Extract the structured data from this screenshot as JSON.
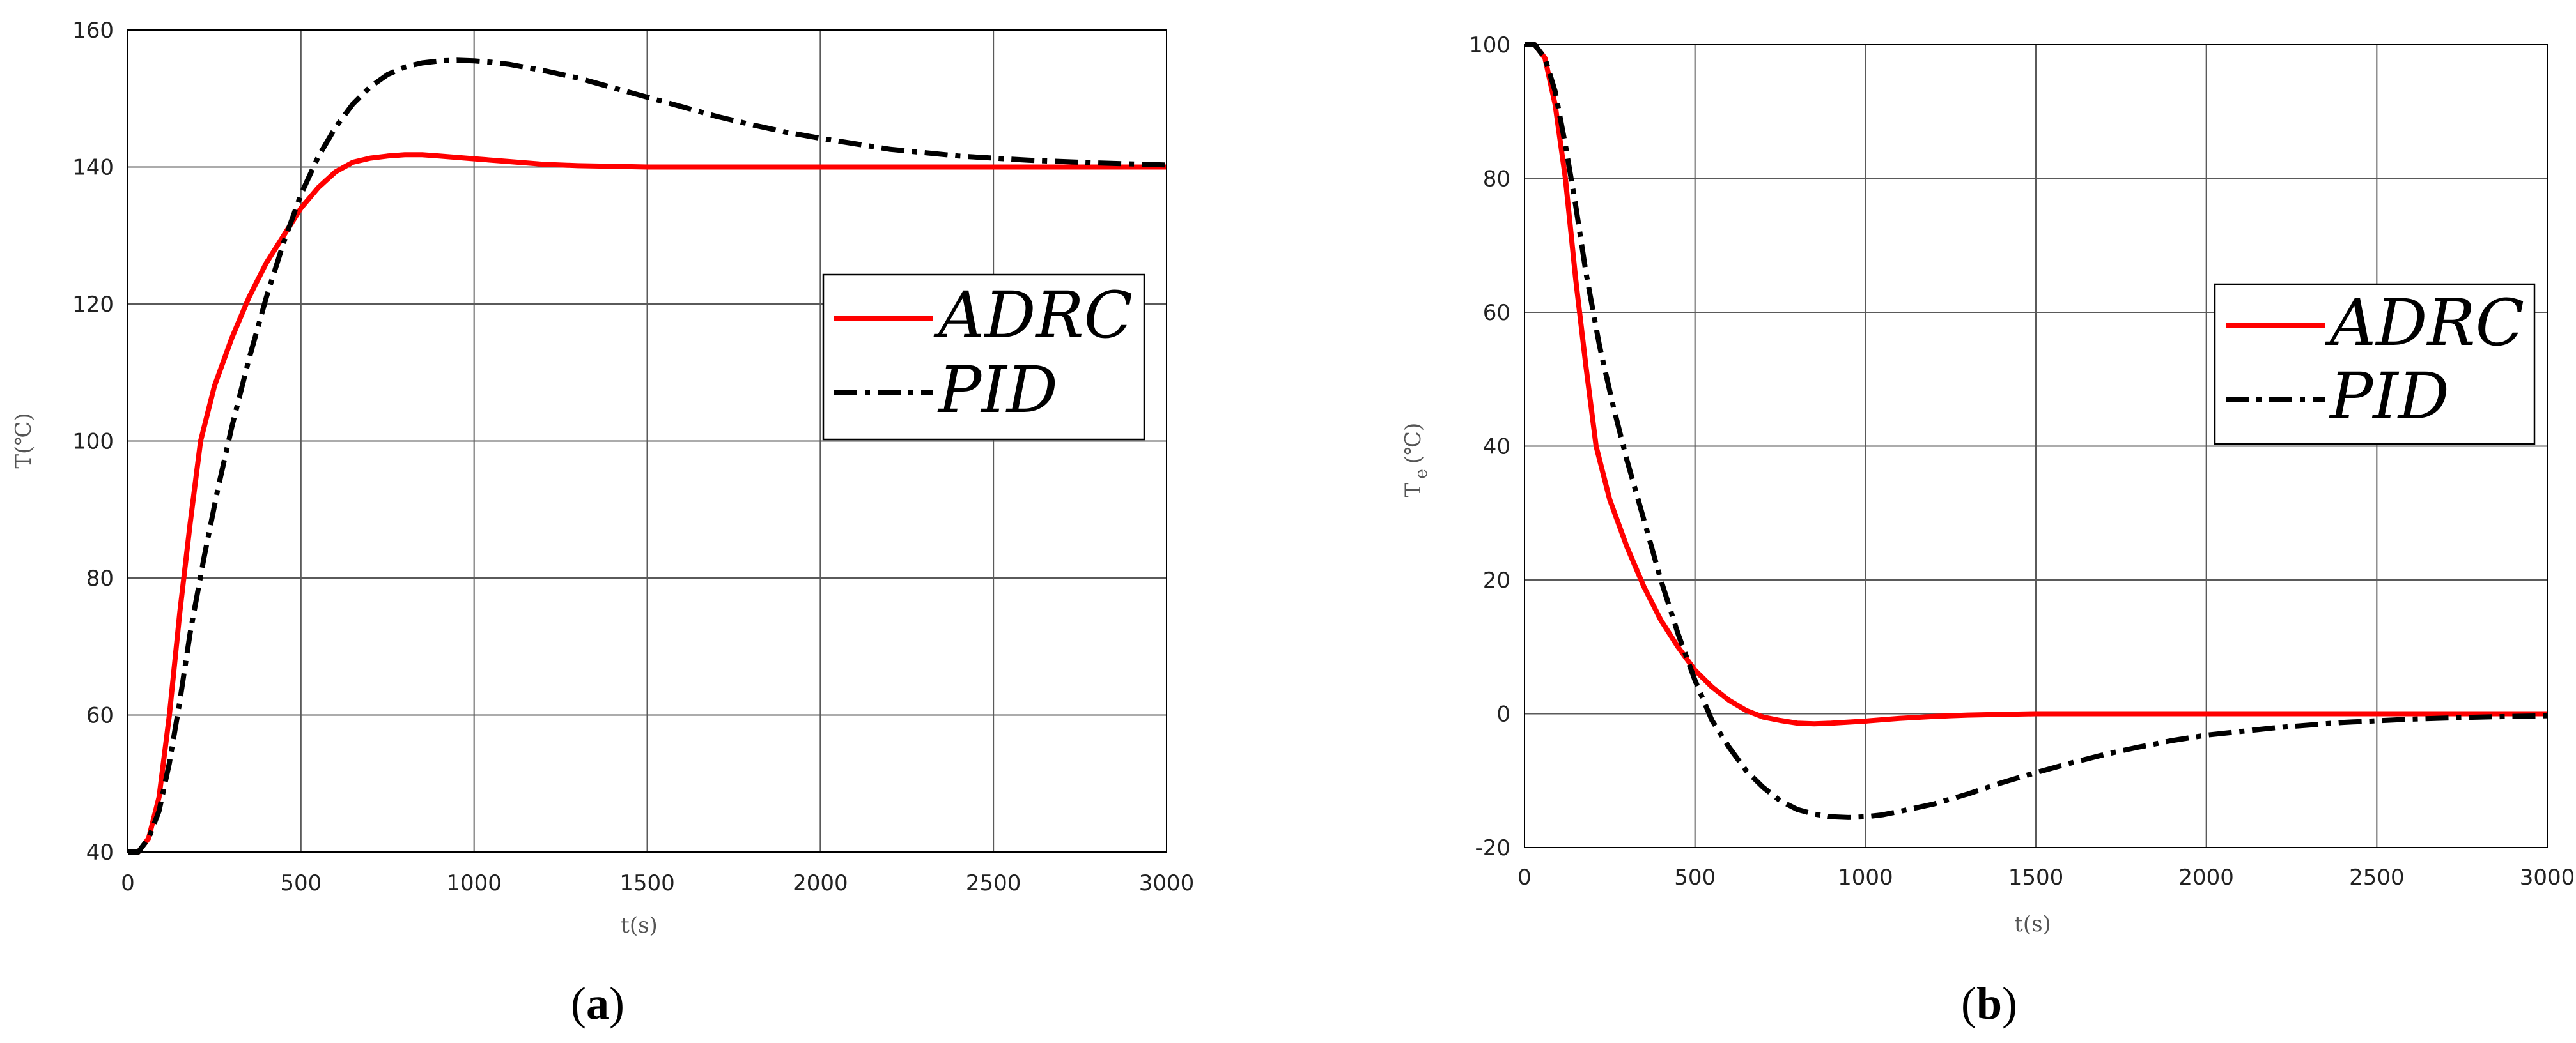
{
  "figure": {
    "colors": {
      "adrc": "#ff0000",
      "pid": "#000000",
      "grid": "#5a5a5a",
      "frame": "#000000"
    }
  },
  "chart_data": [
    {
      "type": "line",
      "panel": {
        "open": "(",
        "letter": "a",
        "close": ")"
      },
      "xlabel": "t(s)",
      "ylabel": "T(℃)",
      "xlim": [
        0,
        3000
      ],
      "ylim": [
        40,
        160
      ],
      "xticks": [
        0,
        500,
        1000,
        1500,
        2000,
        2500,
        3000
      ],
      "yticks": [
        40,
        60,
        80,
        100,
        120,
        140,
        160
      ],
      "grid": true,
      "legend": {
        "placement": "center-right"
      },
      "series": [
        {
          "name": "ADRC",
          "color": "#ff0000",
          "style": "solid",
          "x": [
            0,
            30,
            60,
            90,
            120,
            150,
            180,
            210,
            250,
            300,
            350,
            400,
            450,
            500,
            550,
            600,
            650,
            700,
            750,
            800,
            850,
            900,
            1000,
            1100,
            1200,
            1300,
            1400,
            1500,
            1700,
            2000,
            2500,
            3000
          ],
          "y": [
            40,
            40,
            42,
            48,
            60,
            75,
            88,
            100,
            108,
            115,
            121,
            126,
            130,
            134,
            137,
            139.3,
            140.7,
            141.3,
            141.6,
            141.8,
            141.8,
            141.6,
            141.2,
            140.8,
            140.4,
            140.2,
            140.1,
            140,
            140,
            140,
            140,
            140
          ]
        },
        {
          "name": "PID",
          "color": "#000000",
          "style": "dashdot",
          "x": [
            0,
            30,
            60,
            90,
            120,
            150,
            180,
            220,
            260,
            300,
            350,
            400,
            450,
            500,
            550,
            600,
            650,
            700,
            750,
            800,
            850,
            900,
            950,
            1000,
            1050,
            1100,
            1200,
            1300,
            1400,
            1500,
            1600,
            1700,
            1800,
            1900,
            2000,
            2200,
            2400,
            2600,
            2800,
            3000
          ],
          "y": [
            40,
            40,
            42,
            46,
            53,
            62,
            72,
            83,
            93,
            102,
            112,
            121,
            129,
            136,
            141.5,
            145.8,
            149.2,
            151.7,
            153.5,
            154.6,
            155.2,
            155.5,
            155.6,
            155.5,
            155.3,
            155,
            154.1,
            153,
            151.6,
            150.2,
            148.8,
            147.4,
            146.2,
            145.1,
            144.2,
            142.6,
            141.6,
            141,
            140.6,
            140.3
          ]
        }
      ]
    },
    {
      "type": "line",
      "panel": {
        "open": "(",
        "letter": "b",
        "close": ")"
      },
      "xlabel": "t(s)",
      "ylabel_main": "T",
      "ylabel_sub": "e",
      "ylabel_unit": "(℃)",
      "xlim": [
        0,
        3000
      ],
      "ylim": [
        -20,
        100
      ],
      "xticks": [
        0,
        500,
        1000,
        1500,
        2000,
        2500,
        3000
      ],
      "yticks": [
        -20,
        0,
        20,
        40,
        60,
        80,
        100
      ],
      "grid": true,
      "legend": {
        "placement": "center-right"
      },
      "series": [
        {
          "name": "ADRC",
          "color": "#ff0000",
          "style": "solid",
          "x": [
            0,
            30,
            60,
            90,
            120,
            150,
            180,
            210,
            250,
            300,
            350,
            400,
            450,
            500,
            550,
            600,
            650,
            700,
            750,
            800,
            850,
            900,
            1000,
            1100,
            1200,
            1300,
            1400,
            1500,
            2000,
            2500,
            3000
          ],
          "y": [
            100,
            100,
            98,
            91,
            80,
            65,
            52,
            40,
            32,
            25,
            19,
            14,
            10,
            6.5,
            4,
            2,
            0.5,
            -0.5,
            -1,
            -1.4,
            -1.5,
            -1.4,
            -1.1,
            -0.7,
            -0.4,
            -0.2,
            -0.1,
            0,
            0,
            0,
            0
          ]
        },
        {
          "name": "PID",
          "color": "#000000",
          "style": "dashdot",
          "x": [
            0,
            30,
            60,
            90,
            120,
            150,
            180,
            220,
            260,
            300,
            350,
            400,
            450,
            500,
            550,
            600,
            650,
            700,
            750,
            800,
            850,
            900,
            950,
            1000,
            1050,
            1100,
            1200,
            1300,
            1400,
            1500,
            1600,
            1700,
            1800,
            1900,
            2000,
            2200,
            2400,
            2600,
            2800,
            3000
          ],
          "y": [
            100,
            100,
            98,
            93,
            85,
            76,
            66,
            55,
            46,
            38,
            29,
            20,
            12,
            5,
            -1,
            -5,
            -8.5,
            -11,
            -13,
            -14.3,
            -15,
            -15.4,
            -15.5,
            -15.4,
            -15.1,
            -14.6,
            -13.5,
            -12,
            -10.3,
            -8.8,
            -7.4,
            -6.1,
            -5,
            -4,
            -3.2,
            -2.1,
            -1.3,
            -0.8,
            -0.5,
            -0.3
          ]
        }
      ]
    }
  ]
}
